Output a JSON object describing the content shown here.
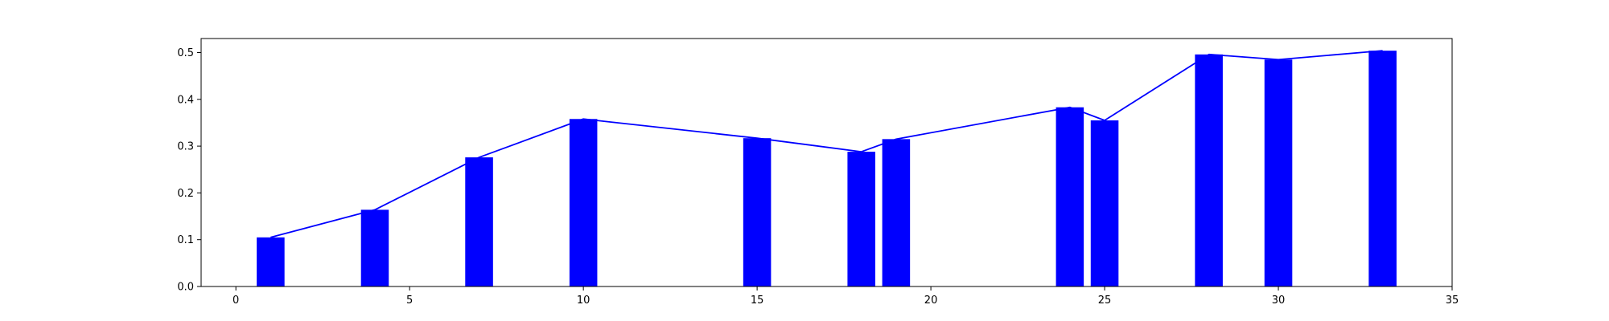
{
  "colors": {
    "bar": "#0000ff",
    "line": "#0000ff",
    "axis": "#000000",
    "background": "#ffffff"
  },
  "chart_data": {
    "type": "bar",
    "title": "",
    "xlabel": "",
    "ylabel": "",
    "xlim": [
      -1,
      35
    ],
    "ylim": [
      0,
      0.53
    ],
    "xticks": [
      0,
      5,
      10,
      15,
      20,
      25,
      30,
      35
    ],
    "yticks": [
      0.0,
      0.1,
      0.2,
      0.3,
      0.4,
      0.5
    ],
    "xtick_labels": [
      "0",
      "5",
      "10",
      "15",
      "20",
      "25",
      "30",
      "35"
    ],
    "ytick_labels": [
      "0.0",
      "0.1",
      "0.2",
      "0.3",
      "0.4",
      "0.5"
    ],
    "grid": false,
    "bar_width": 0.8,
    "series": [
      {
        "type": "bar",
        "x": [
          1,
          4,
          7,
          10,
          15,
          18,
          19,
          24,
          25,
          28,
          30,
          33
        ],
        "values": [
          0.105,
          0.164,
          0.276,
          0.358,
          0.317,
          0.288,
          0.315,
          0.383,
          0.355,
          0.496,
          0.485,
          0.504
        ]
      },
      {
        "type": "line",
        "x": [
          1,
          4,
          7,
          10,
          15,
          18,
          19,
          24,
          25,
          28,
          30,
          33
        ],
        "values": [
          0.105,
          0.164,
          0.276,
          0.358,
          0.317,
          0.288,
          0.315,
          0.383,
          0.355,
          0.496,
          0.485,
          0.504
        ]
      }
    ]
  }
}
